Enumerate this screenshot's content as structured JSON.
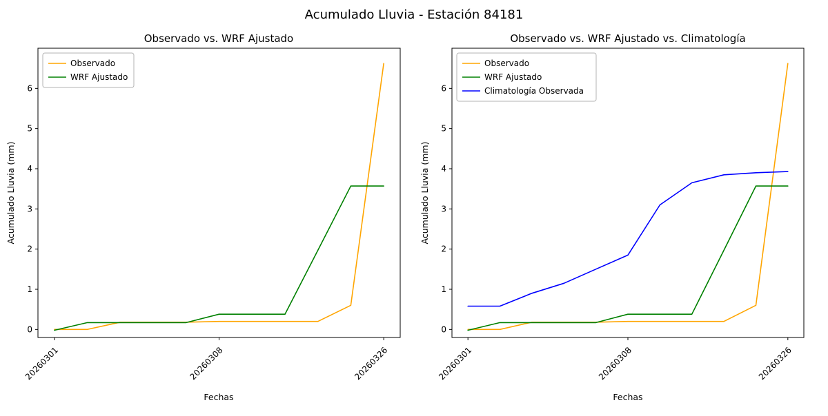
{
  "figure": {
    "title": "Acumulado Lluvia - Estación 84181",
    "background_color": "#ffffff",
    "text_color": "#000000"
  },
  "chart_data": [
    {
      "type": "line",
      "title": "Observado vs. WRF Ajustado",
      "xlabel": "Fechas",
      "ylabel": "Acumulado Lluvia (mm)",
      "x_tick_labels": [
        "20260301",
        "20260308",
        "20260326"
      ],
      "x_tick_indices": [
        0,
        5,
        10
      ],
      "x_tick_rotation": 45,
      "n_points": 11,
      "y_ticks": [
        0,
        1,
        2,
        3,
        4,
        5,
        6
      ],
      "ylim": [
        -0.2,
        7.0
      ],
      "grid": false,
      "legend_position": "upper left",
      "series": [
        {
          "name": "Observado",
          "color": "#ffa500",
          "values": [
            0,
            0,
            0.18,
            0.18,
            0.18,
            0.2,
            0.2,
            0.2,
            0.2,
            0.6,
            6.62
          ]
        },
        {
          "name": "WRF Ajustado",
          "color": "#008000",
          "values": [
            -0.02,
            0.17,
            0.17,
            0.17,
            0.17,
            0.38,
            0.38,
            0.38,
            1.97,
            3.57,
            3.57
          ]
        }
      ]
    },
    {
      "type": "line",
      "title": "Observado vs. WRF Ajustado vs. Climatología",
      "xlabel": "Fechas",
      "ylabel": "Acumulado Lluvia (mm)",
      "x_tick_labels": [
        "20260301",
        "20260308",
        "20260326"
      ],
      "x_tick_indices": [
        0,
        5,
        10
      ],
      "x_tick_rotation": 45,
      "n_points": 11,
      "y_ticks": [
        0,
        1,
        2,
        3,
        4,
        5,
        6
      ],
      "ylim": [
        -0.2,
        7.0
      ],
      "grid": false,
      "legend_position": "upper left",
      "series": [
        {
          "name": "Observado",
          "color": "#ffa500",
          "values": [
            0,
            0,
            0.18,
            0.18,
            0.18,
            0.2,
            0.2,
            0.2,
            0.2,
            0.6,
            6.62
          ]
        },
        {
          "name": "WRF Ajustado",
          "color": "#008000",
          "values": [
            -0.02,
            0.17,
            0.17,
            0.17,
            0.17,
            0.38,
            0.38,
            0.38,
            1.97,
            3.57,
            3.57
          ]
        },
        {
          "name": "Climatología Observada",
          "color": "#0000ff",
          "values": [
            0.58,
            0.58,
            0.9,
            1.15,
            1.5,
            1.85,
            3.1,
            3.65,
            3.85,
            3.9,
            3.93
          ]
        }
      ]
    }
  ]
}
